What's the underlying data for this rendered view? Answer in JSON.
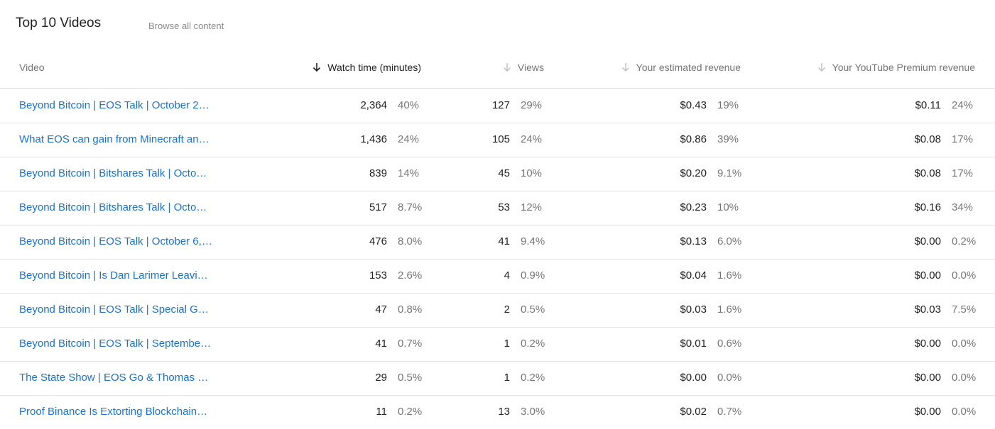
{
  "title": "Top 10 Videos",
  "browse_link": "Browse all content",
  "columns": {
    "video": "Video",
    "watch_time": "Watch time (minutes)",
    "views": "Views",
    "estimated_revenue": "Your estimated revenue",
    "premium_revenue": "Your YouTube Premium revenue"
  },
  "sorted_column": "watch_time",
  "rows": [
    {
      "video": "Beyond Bitcoin | EOS Talk | October 2…",
      "watch": "2,364",
      "watch_pct": "40%",
      "views": "127",
      "views_pct": "29%",
      "rev": "$0.43",
      "rev_pct": "19%",
      "prem": "$0.11",
      "prem_pct": "24%"
    },
    {
      "video": "What EOS can gain from Minecraft an…",
      "watch": "1,436",
      "watch_pct": "24%",
      "views": "105",
      "views_pct": "24%",
      "rev": "$0.86",
      "rev_pct": "39%",
      "prem": "$0.08",
      "prem_pct": "17%"
    },
    {
      "video": "Beyond Bitcoin | Bitshares Talk | Octo…",
      "watch": "839",
      "watch_pct": "14%",
      "views": "45",
      "views_pct": "10%",
      "rev": "$0.20",
      "rev_pct": "9.1%",
      "prem": "$0.08",
      "prem_pct": "17%"
    },
    {
      "video": "Beyond Bitcoin | Bitshares Talk | Octo…",
      "watch": "517",
      "watch_pct": "8.7%",
      "views": "53",
      "views_pct": "12%",
      "rev": "$0.23",
      "rev_pct": "10%",
      "prem": "$0.16",
      "prem_pct": "34%"
    },
    {
      "video": "Beyond Bitcoin | EOS Talk | October 6, …",
      "watch": "476",
      "watch_pct": "8.0%",
      "views": "41",
      "views_pct": "9.4%",
      "rev": "$0.13",
      "rev_pct": "6.0%",
      "prem": "$0.00",
      "prem_pct": "0.2%"
    },
    {
      "video": "Beyond Bitcoin | Is Dan Larimer Leavi…",
      "watch": "153",
      "watch_pct": "2.6%",
      "views": "4",
      "views_pct": "0.9%",
      "rev": "$0.04",
      "rev_pct": "1.6%",
      "prem": "$0.00",
      "prem_pct": "0.0%"
    },
    {
      "video": "Beyond Bitcoin | EOS Talk | Special Gu…",
      "watch": "47",
      "watch_pct": "0.8%",
      "views": "2",
      "views_pct": "0.5%",
      "rev": "$0.03",
      "rev_pct": "1.6%",
      "prem": "$0.03",
      "prem_pct": "7.5%"
    },
    {
      "video": "Beyond Bitcoin | EOS Talk | Septembe…",
      "watch": "41",
      "watch_pct": "0.7%",
      "views": "1",
      "views_pct": "0.2%",
      "rev": "$0.01",
      "rev_pct": "0.6%",
      "prem": "$0.00",
      "prem_pct": "0.0%"
    },
    {
      "video": "The State Show | EOS Go & Thomas C…",
      "watch": "29",
      "watch_pct": "0.5%",
      "views": "1",
      "views_pct": "0.2%",
      "rev": "$0.00",
      "rev_pct": "0.0%",
      "prem": "$0.00",
      "prem_pct": "0.0%"
    },
    {
      "video": "Proof Binance Is Extorting Blockchain…",
      "watch": "11",
      "watch_pct": "0.2%",
      "views": "13",
      "views_pct": "3.0%",
      "rev": "$0.02",
      "rev_pct": "0.7%",
      "prem": "$0.00",
      "prem_pct": "0.0%"
    }
  ],
  "colors": {
    "link": "#1a73c8",
    "text": "#212121",
    "muted": "#757575",
    "divider": "#e0e0e0"
  },
  "icons": {
    "sort_active": "arrow-down-icon",
    "sort_inactive": "arrow-down-icon"
  }
}
